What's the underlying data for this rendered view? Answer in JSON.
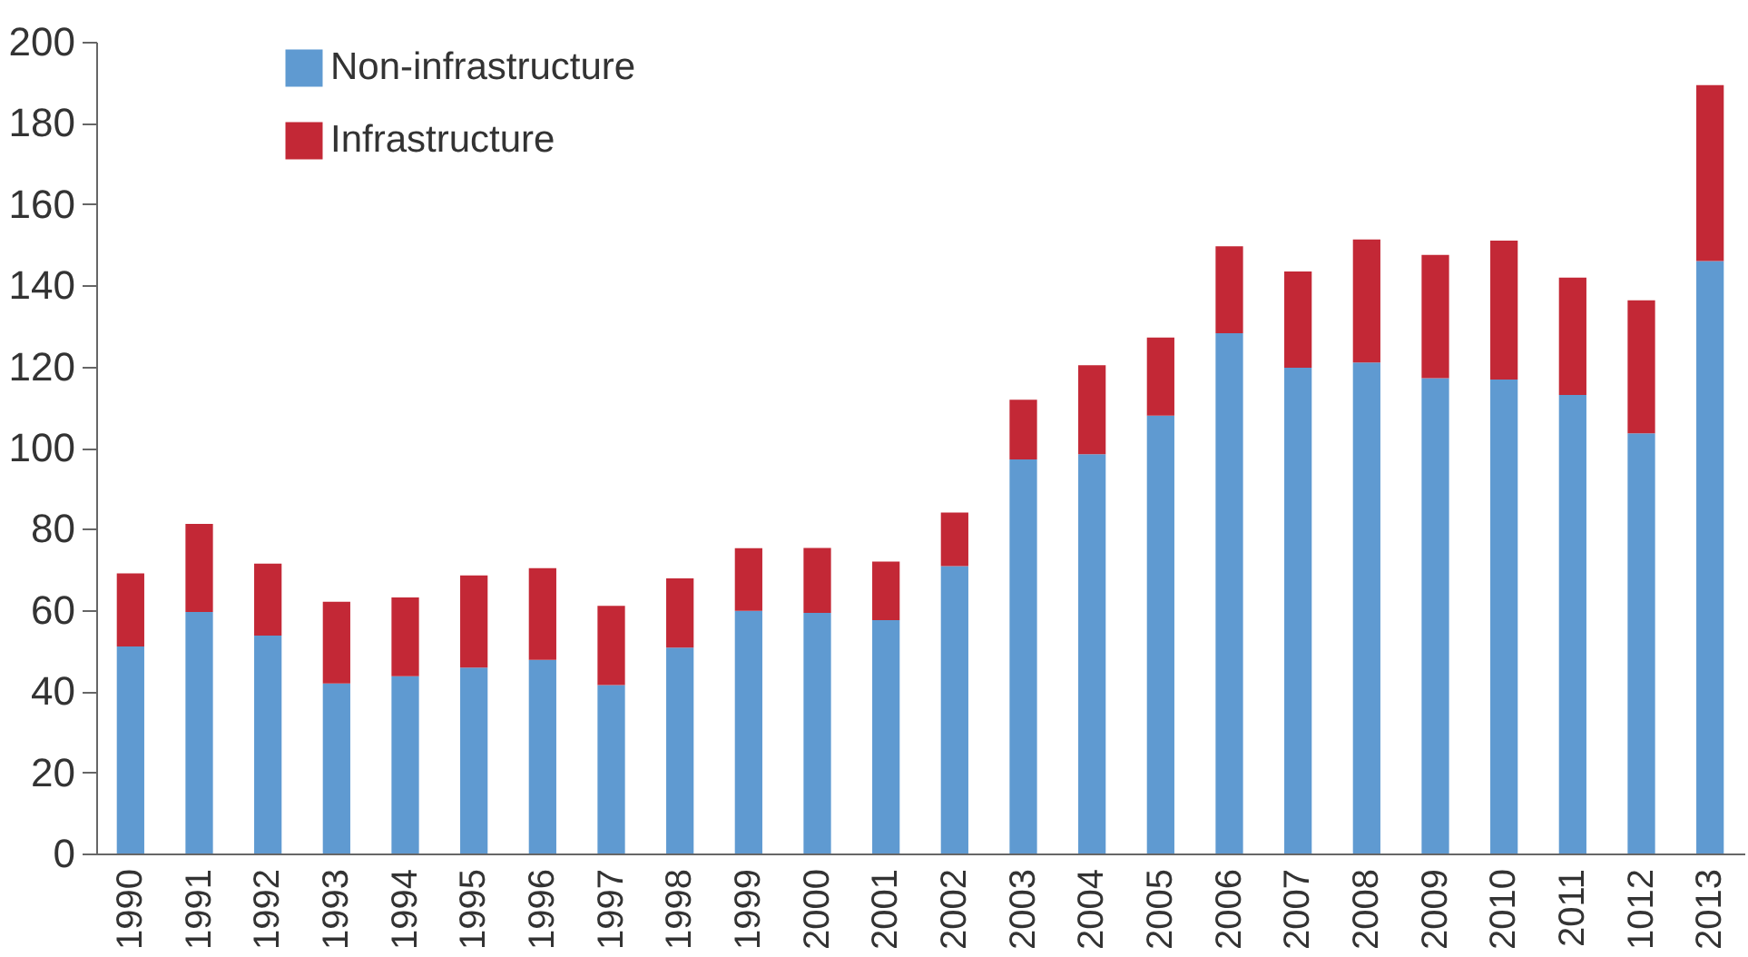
{
  "chart_data": {
    "type": "bar",
    "stacked": true,
    "legend": "top left",
    "grid": false,
    "categories": [
      "1990",
      "1991",
      "1992",
      "1993",
      "1994",
      "1995",
      "1996",
      "1997",
      "1998",
      "1999",
      "2000",
      "2001",
      "2002",
      "2003",
      "2004",
      "2005",
      "2006",
      "2007",
      "2008",
      "2009",
      "2010",
      "2011",
      "1012",
      "2013"
    ],
    "series": [
      {
        "name": "Non-infrastructure",
        "color": "#5f9ad1",
        "values": [
          51.0,
          59.5,
          53.7,
          41.9,
          43.7,
          45.8,
          47.7,
          41.5,
          50.7,
          59.8,
          59.3,
          57.5,
          70.8,
          97.1,
          98.4,
          107.9,
          128.2,
          119.7,
          121.0,
          117.1,
          116.8,
          113.0,
          103.5,
          146.0
        ]
      },
      {
        "name": "Infrastructure",
        "color": "#c32836",
        "values": [
          18.0,
          21.7,
          17.7,
          20.1,
          19.4,
          22.7,
          22.6,
          19.5,
          17.1,
          15.4,
          16.0,
          14.4,
          13.2,
          14.7,
          21.9,
          19.2,
          21.4,
          23.7,
          30.3,
          30.4,
          34.2,
          28.9,
          32.8,
          43.3
        ]
      }
    ],
    "ylim": [
      0,
      200
    ],
    "yticks": [
      0,
      20,
      40,
      60,
      80,
      100,
      120,
      140,
      160,
      180,
      200
    ]
  }
}
